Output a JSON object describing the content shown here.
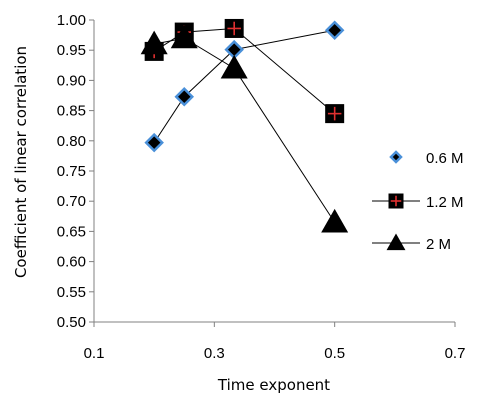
{
  "chart_data": {
    "type": "line",
    "xlabel": "Time exponent",
    "ylabel": "Coefficient of linear correlation",
    "xlim": [
      0.1,
      0.7
    ],
    "ylim": [
      0.5,
      1.0
    ],
    "x_ticks": [
      "0.1",
      "0.3",
      "0.5",
      "0.7"
    ],
    "y_ticks": [
      "0.50",
      "0.55",
      "0.60",
      "0.65",
      "0.70",
      "0.75",
      "0.80",
      "0.85",
      "0.90",
      "0.95",
      "1.00"
    ],
    "grid": false,
    "legend_position": "right",
    "series": [
      {
        "name": "0.6 M",
        "marker": "diamond",
        "color": "#000000",
        "marker_fill": "#000000",
        "marker_edge": "#4a90d9",
        "x": [
          0.2,
          0.25,
          0.333,
          0.5
        ],
        "y": [
          0.797,
          0.873,
          0.951,
          0.983
        ]
      },
      {
        "name": "1.2 M",
        "marker": "square",
        "color": "#000000",
        "marker_fill": "#000000",
        "cross_color": "#e03030",
        "x": [
          0.2,
          0.25,
          0.333,
          0.5
        ],
        "y": [
          0.948,
          0.98,
          0.986,
          0.845
        ]
      },
      {
        "name": "2 M",
        "marker": "triangle",
        "color": "#000000",
        "marker_fill": "#000000",
        "x": [
          0.2,
          0.25,
          0.333,
          0.5
        ],
        "y": [
          0.96,
          0.97,
          0.92,
          0.665
        ]
      }
    ]
  }
}
